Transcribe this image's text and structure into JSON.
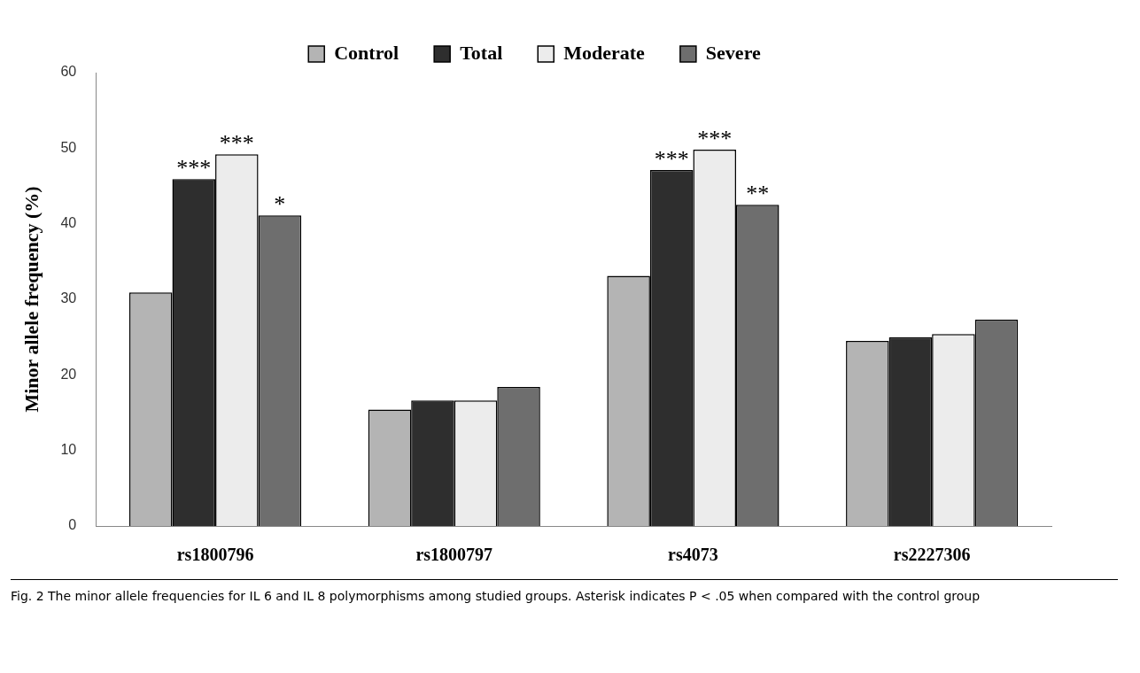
{
  "chart_data": {
    "type": "bar",
    "ylabel": "Minor allele frequency (%)",
    "categories": [
      "rs1800796",
      "rs1800797",
      "rs4073",
      "rs2227306"
    ],
    "series": [
      {
        "name": "Control",
        "color": "#b4b4b4",
        "values": [
          30.9,
          15.4,
          33.1,
          24.5
        ]
      },
      {
        "name": "Total",
        "color": "#2e2e2e",
        "values": [
          45.9,
          16.6,
          47.1,
          25.0
        ]
      },
      {
        "name": "Moderate",
        "color": "#ececec",
        "values": [
          49.2,
          16.6,
          49.8,
          25.4
        ]
      },
      {
        "name": "Severe",
        "color": "#6e6e6e",
        "values": [
          41.1,
          18.4,
          42.5,
          27.3
        ]
      }
    ],
    "ylim": [
      0,
      60
    ],
    "yticks": [
      0,
      10,
      20,
      30,
      40,
      50,
      60
    ],
    "grid": false,
    "legend": "top",
    "annotations": [
      {
        "text": "***",
        "x": "rs1800796",
        "y": 45.9
      },
      {
        "text": "***",
        "x": "rs1800796",
        "y": 49.2
      },
      {
        "text": "*",
        "x": "rs1800796",
        "y": 41.1
      },
      {
        "text": "***",
        "x": "rs4073",
        "y": 47.1
      },
      {
        "text": "***",
        "x": "rs4073",
        "y": 49.8
      },
      {
        "text": "**",
        "x": "rs4073",
        "y": 42.5
      },
      "Fig. 2 The minor allele frequencies for IL 6 and IL 8 polymorphisms among studied groups. Asterisk indicates P < .05 when compared with the control group"
    ]
  }
}
